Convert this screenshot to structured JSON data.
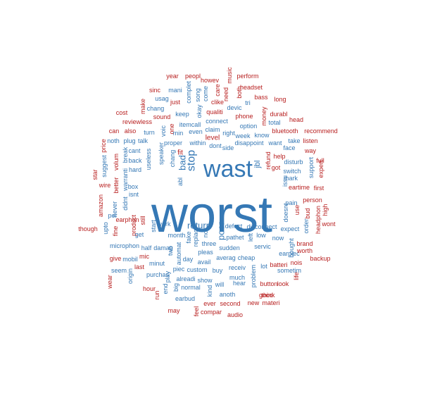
{
  "colors": {
    "blue": "#3578b5",
    "red": "#b82020",
    "background": "#ffffff"
  },
  "words": [
    {
      "text": "worst",
      "color": "blue"
    },
    {
      "text": "wast",
      "color": "blue"
    },
    {
      "text": "stop",
      "color": "blue"
    },
    {
      "text": "return",
      "color": "blue"
    },
    {
      "text": "poor",
      "color": "blue"
    },
    {
      "text": "bad",
      "color": "blue"
    },
    {
      "text": "fit",
      "color": "red"
    },
    {
      "text": "jbl",
      "color": "blue"
    },
    {
      "text": "level",
      "color": "red"
    },
    {
      "text": "year",
      "color": "red"
    },
    {
      "text": "peopl",
      "color": "red"
    },
    {
      "text": "howev",
      "color": "red"
    },
    {
      "text": "music",
      "color": "red"
    },
    {
      "text": "perform",
      "color": "red"
    },
    {
      "text": "mani",
      "color": "blue"
    },
    {
      "text": "complet",
      "color": "blue"
    },
    {
      "text": "song",
      "color": "blue"
    },
    {
      "text": "care",
      "color": "red"
    },
    {
      "text": "need",
      "color": "red"
    },
    {
      "text": "both",
      "color": "red"
    },
    {
      "text": "headset",
      "color": "red"
    },
    {
      "text": "sinc",
      "color": "red"
    },
    {
      "text": "usag",
      "color": "blue"
    },
    {
      "text": "come",
      "color": "blue"
    },
    {
      "text": "tri",
      "color": "blue"
    },
    {
      "text": "bass",
      "color": "red"
    },
    {
      "text": "long",
      "color": "red"
    },
    {
      "text": "make",
      "color": "red"
    },
    {
      "text": "just",
      "color": "red"
    },
    {
      "text": "chang",
      "color": "blue"
    },
    {
      "text": "clike",
      "color": "red"
    },
    {
      "text": "devic",
      "color": "blue"
    },
    {
      "text": "money",
      "color": "red"
    },
    {
      "text": "cost",
      "color": "red"
    },
    {
      "text": "sound",
      "color": "red"
    },
    {
      "text": "keep",
      "color": "blue"
    },
    {
      "text": "okay",
      "color": "blue"
    },
    {
      "text": "qualiti",
      "color": "red"
    },
    {
      "text": "phone",
      "color": "red"
    },
    {
      "text": "durabl",
      "color": "red"
    },
    {
      "text": "head",
      "color": "red"
    },
    {
      "text": "reviewless",
      "color": "red"
    },
    {
      "text": "itemcall",
      "color": "blue"
    },
    {
      "text": "connect",
      "color": "blue"
    },
    {
      "text": "option",
      "color": "blue"
    },
    {
      "text": "total",
      "color": "blue"
    },
    {
      "text": "can",
      "color": "red"
    },
    {
      "text": "also",
      "color": "red"
    },
    {
      "text": "turn",
      "color": "blue"
    },
    {
      "text": "voic",
      "color": "blue"
    },
    {
      "text": "one",
      "color": "red"
    },
    {
      "text": "min",
      "color": "blue"
    },
    {
      "text": "even",
      "color": "blue"
    },
    {
      "text": "claim",
      "color": "blue"
    },
    {
      "text": "right",
      "color": "blue"
    },
    {
      "text": "week",
      "color": "blue"
    },
    {
      "text": "know",
      "color": "blue"
    },
    {
      "text": "bluetooth",
      "color": "red"
    },
    {
      "text": "recommend",
      "color": "red"
    },
    {
      "text": "noth",
      "color": "blue"
    },
    {
      "text": "plug",
      "color": "blue"
    },
    {
      "text": "talk",
      "color": "blue"
    },
    {
      "text": "proper",
      "color": "blue"
    },
    {
      "text": "within",
      "color": "blue"
    },
    {
      "text": "dont",
      "color": "blue"
    },
    {
      "text": "side",
      "color": "blue"
    },
    {
      "text": "disappoint",
      "color": "blue"
    },
    {
      "text": "want",
      "color": "blue"
    },
    {
      "text": "take",
      "color": "blue"
    },
    {
      "text": "listen",
      "color": "red"
    },
    {
      "text": "face",
      "color": "blue"
    },
    {
      "text": "price",
      "color": "red"
    },
    {
      "text": "cant",
      "color": "blue"
    },
    {
      "text": "speaker",
      "color": "blue"
    },
    {
      "text": "way",
      "color": "red"
    },
    {
      "text": "star",
      "color": "red"
    },
    {
      "text": "suggest",
      "color": "blue"
    },
    {
      "text": "volum",
      "color": "red"
    },
    {
      "text": "break",
      "color": "blue"
    },
    {
      "text": "back",
      "color": "blue"
    },
    {
      "text": "useless",
      "color": "blue"
    },
    {
      "text": "chang",
      "color": "blue"
    },
    {
      "text": "abl",
      "color": "blue"
    },
    {
      "text": "refund",
      "color": "red"
    },
    {
      "text": "help",
      "color": "red"
    },
    {
      "text": "disturb",
      "color": "blue"
    },
    {
      "text": "support",
      "color": "blue"
    },
    {
      "text": "full",
      "color": "red"
    },
    {
      "text": "expert",
      "color": "red"
    },
    {
      "text": "hard",
      "color": "blue"
    },
    {
      "text": "got",
      "color": "red"
    },
    {
      "text": "switch",
      "color": "blue"
    },
    {
      "text": "better",
      "color": "red"
    },
    {
      "text": "warranti",
      "color": "blue"
    },
    {
      "text": "mark",
      "color": "blue"
    },
    {
      "text": "wire",
      "color": "red"
    },
    {
      "text": "box",
      "color": "blue"
    },
    {
      "text": "issu",
      "color": "blue"
    },
    {
      "text": "eartime",
      "color": "red"
    },
    {
      "text": "first",
      "color": "red"
    },
    {
      "text": "amazon",
      "color": "red"
    },
    {
      "text": "never",
      "color": "blue"
    },
    {
      "text": "didnt",
      "color": "blue"
    },
    {
      "text": "isnt",
      "color": "blue"
    },
    {
      "text": "pain",
      "color": "blue"
    },
    {
      "text": "person",
      "color": "red"
    },
    {
      "text": "high",
      "color": "red"
    },
    {
      "text": "per",
      "color": "blue"
    },
    {
      "text": "earphon",
      "color": "red"
    },
    {
      "text": "still",
      "color": "red"
    },
    {
      "text": "doesnt",
      "color": "blue"
    },
    {
      "text": "use",
      "color": "red"
    },
    {
      "text": "bud",
      "color": "red"
    },
    {
      "text": "headphon",
      "color": "red"
    },
    {
      "text": "though",
      "color": "red"
    },
    {
      "text": "upto",
      "color": "blue"
    },
    {
      "text": "fine",
      "color": "red"
    },
    {
      "text": "product",
      "color": "red"
    },
    {
      "text": "start",
      "color": "blue"
    },
    {
      "text": "work",
      "color": "blue"
    },
    {
      "text": "defect",
      "color": "blue"
    },
    {
      "text": "disconnect",
      "color": "blue"
    },
    {
      "text": "expect",
      "color": "blue"
    },
    {
      "text": "order",
      "color": "blue"
    },
    {
      "text": "wont",
      "color": "red"
    },
    {
      "text": "get",
      "color": "blue"
    },
    {
      "text": "month",
      "color": "blue"
    },
    {
      "text": "fake",
      "color": "blue"
    },
    {
      "text": "replac",
      "color": "blue"
    },
    {
      "text": "not",
      "color": "blue"
    },
    {
      "text": "pathet",
      "color": "blue"
    },
    {
      "text": "left",
      "color": "blue"
    },
    {
      "text": "low",
      "color": "blue"
    },
    {
      "text": "now",
      "color": "blue"
    },
    {
      "text": "bought",
      "color": "blue"
    },
    {
      "text": "microphon",
      "color": "blue"
    },
    {
      "text": "half",
      "color": "blue"
    },
    {
      "text": "damag",
      "color": "blue"
    },
    {
      "text": "two",
      "color": "blue"
    },
    {
      "text": "three",
      "color": "blue"
    },
    {
      "text": "sudden",
      "color": "blue"
    },
    {
      "text": "servic",
      "color": "blue"
    },
    {
      "text": "earpiec",
      "color": "blue"
    },
    {
      "text": "brand",
      "color": "red"
    },
    {
      "text": "give",
      "color": "red"
    },
    {
      "text": "mobil",
      "color": "blue"
    },
    {
      "text": "mic",
      "color": "red"
    },
    {
      "text": "automat",
      "color": "blue"
    },
    {
      "text": "day",
      "color": "blue"
    },
    {
      "text": "pleas",
      "color": "blue"
    },
    {
      "text": "worth",
      "color": "red"
    },
    {
      "text": "minut",
      "color": "blue"
    },
    {
      "text": "avail",
      "color": "blue"
    },
    {
      "text": "averag",
      "color": "blue"
    },
    {
      "text": "cheap",
      "color": "blue"
    },
    {
      "text": "batteri",
      "color": "red"
    },
    {
      "text": "nois",
      "color": "red"
    },
    {
      "text": "backup",
      "color": "red"
    },
    {
      "text": "seem",
      "color": "blue"
    },
    {
      "text": "last",
      "color": "red"
    },
    {
      "text": "piec",
      "color": "blue"
    },
    {
      "text": "custom",
      "color": "blue"
    },
    {
      "text": "buy",
      "color": "blue"
    },
    {
      "text": "receiv",
      "color": "blue"
    },
    {
      "text": "lot",
      "color": "blue"
    },
    {
      "text": "sometim",
      "color": "blue"
    },
    {
      "text": "life",
      "color": "red"
    },
    {
      "text": "wear",
      "color": "red"
    },
    {
      "text": "origin",
      "color": "blue"
    },
    {
      "text": "purchas",
      "color": "blue"
    },
    {
      "text": "play",
      "color": "blue"
    },
    {
      "text": "alreadi",
      "color": "blue"
    },
    {
      "text": "show",
      "color": "blue"
    },
    {
      "text": "much",
      "color": "blue"
    },
    {
      "text": "problem",
      "color": "blue"
    },
    {
      "text": "button",
      "color": "red"
    },
    {
      "text": "look",
      "color": "red"
    },
    {
      "text": "hour",
      "color": "red"
    },
    {
      "text": "big",
      "color": "blue"
    },
    {
      "text": "normal",
      "color": "blue"
    },
    {
      "text": "will",
      "color": "blue"
    },
    {
      "text": "hear",
      "color": "blue"
    },
    {
      "text": "run",
      "color": "red"
    },
    {
      "text": "end",
      "color": "blue"
    },
    {
      "text": "kind",
      "color": "blue"
    },
    {
      "text": "anoth",
      "color": "blue"
    },
    {
      "text": "good",
      "color": "red"
    },
    {
      "text": "think",
      "color": "red"
    },
    {
      "text": "earbud",
      "color": "blue"
    },
    {
      "text": "ever",
      "color": "red"
    },
    {
      "text": "second",
      "color": "red"
    },
    {
      "text": "new",
      "color": "red"
    },
    {
      "text": "materi",
      "color": "red"
    },
    {
      "text": "may",
      "color": "red"
    },
    {
      "text": "feel",
      "color": "red"
    },
    {
      "text": "compar",
      "color": "red"
    },
    {
      "text": "audio",
      "color": "red"
    }
  ]
}
